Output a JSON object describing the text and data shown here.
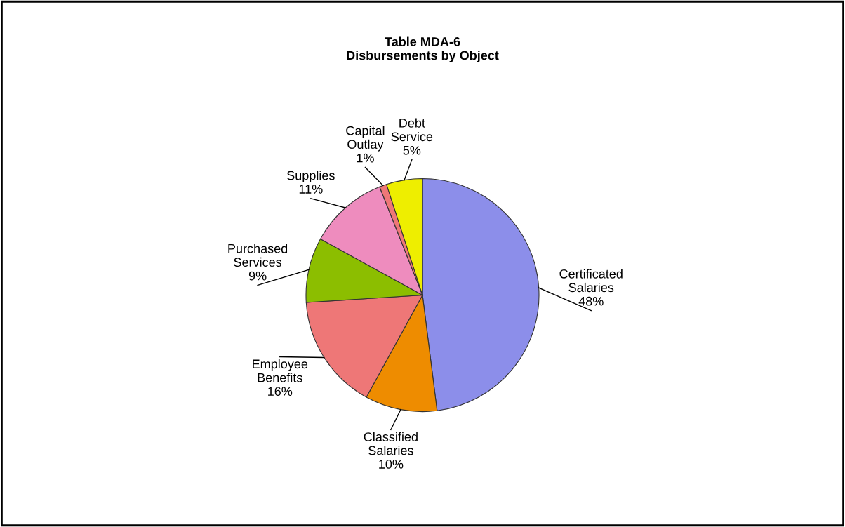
{
  "chart_data": {
    "type": "pie",
    "title": "Table MDA-6\nDisbursements by Object",
    "categories": [
      "Certificated Salaries",
      "Classified Salaries",
      "Employee Benefits",
      "Purchased Services",
      "Supplies",
      "Capital Outlay",
      "Debt Service"
    ],
    "values": [
      48,
      10,
      16,
      9,
      11,
      1,
      5
    ],
    "value_labels": [
      "48%",
      "10%",
      "16%",
      "9%",
      "11%",
      "1%",
      "5%"
    ],
    "colors": [
      "#8c8eea",
      "#ee8c00",
      "#ee7777",
      "#8cbe00",
      "#ee8cbe",
      "#ee7777",
      "#eeee00"
    ],
    "legend": false
  }
}
